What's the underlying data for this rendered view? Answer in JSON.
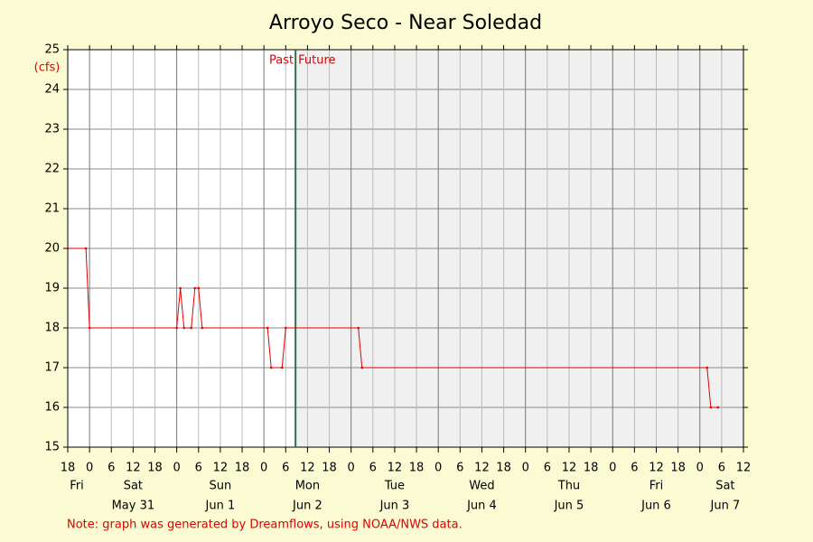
{
  "chart_data": {
    "type": "line",
    "title": "Arroyo Seco - Near Soledad",
    "y_unit_label": "(cfs)",
    "note": "Note: graph was generated by Dreamflows, using NOAA/NWS data.",
    "color": "#e00000",
    "x": [
      0,
      5,
      6,
      30,
      31,
      32,
      34,
      35,
      36,
      37,
      55,
      56,
      59,
      60,
      80,
      81,
      176,
      177,
      179
    ],
    "values": [
      20,
      20,
      18,
      18,
      19,
      18,
      18,
      19,
      19,
      18,
      18,
      17,
      17,
      18,
      18,
      17,
      17,
      16,
      16
    ],
    "xlim": [
      0,
      186
    ],
    "ylim": [
      15,
      25
    ],
    "yticks": [
      15,
      16,
      17,
      18,
      19,
      20,
      21,
      22,
      23,
      24,
      25
    ],
    "xticks": [
      {
        "value": 0,
        "label": "18"
      },
      {
        "value": 6,
        "label": "0"
      },
      {
        "value": 12,
        "label": "6"
      },
      {
        "value": 18,
        "label": "12"
      },
      {
        "value": 24,
        "label": "18"
      },
      {
        "value": 30,
        "label": "0"
      },
      {
        "value": 36,
        "label": "6"
      },
      {
        "value": 42,
        "label": "12"
      },
      {
        "value": 48,
        "label": "18"
      },
      {
        "value": 54,
        "label": "0"
      },
      {
        "value": 60,
        "label": "6"
      },
      {
        "value": 66,
        "label": "12"
      },
      {
        "value": 72,
        "label": "18"
      },
      {
        "value": 78,
        "label": "0"
      },
      {
        "value": 84,
        "label": "6"
      },
      {
        "value": 90,
        "label": "12"
      },
      {
        "value": 96,
        "label": "18"
      },
      {
        "value": 102,
        "label": "0"
      },
      {
        "value": 108,
        "label": "6"
      },
      {
        "value": 114,
        "label": "12"
      },
      {
        "value": 120,
        "label": "18"
      },
      {
        "value": 126,
        "label": "0"
      },
      {
        "value": 132,
        "label": "6"
      },
      {
        "value": 138,
        "label": "12"
      },
      {
        "value": 144,
        "label": "18"
      },
      {
        "value": 150,
        "label": "0"
      },
      {
        "value": 156,
        "label": "6"
      },
      {
        "value": 162,
        "label": "12"
      },
      {
        "value": 168,
        "label": "18"
      },
      {
        "value": 174,
        "label": "0"
      },
      {
        "value": 180,
        "label": "6"
      },
      {
        "value": 186,
        "label": "12"
      }
    ],
    "day_ticks": [
      {
        "value": 2.5,
        "label": "Fri"
      },
      {
        "value": 18,
        "label": "Sat"
      },
      {
        "value": 42,
        "label": "Sun"
      },
      {
        "value": 66,
        "label": "Mon"
      },
      {
        "value": 90,
        "label": "Tue"
      },
      {
        "value": 114,
        "label": "Wed"
      },
      {
        "value": 138,
        "label": "Thu"
      },
      {
        "value": 162,
        "label": "Fri"
      },
      {
        "value": 181,
        "label": "Sat"
      }
    ],
    "date_ticks": [
      {
        "value": 18,
        "label": "May 31"
      },
      {
        "value": 42,
        "label": "Jun 1"
      },
      {
        "value": 66,
        "label": "Jun 2"
      },
      {
        "value": 90,
        "label": "Jun 3"
      },
      {
        "value": 114,
        "label": "Jun 4"
      },
      {
        "value": 138,
        "label": "Jun 5"
      },
      {
        "value": 162,
        "label": "Jun 6"
      },
      {
        "value": 181,
        "label": "Jun 7"
      }
    ],
    "now_line": {
      "value": 62.7,
      "past_label": "Past",
      "future_label": "Future"
    },
    "grid": true
  }
}
